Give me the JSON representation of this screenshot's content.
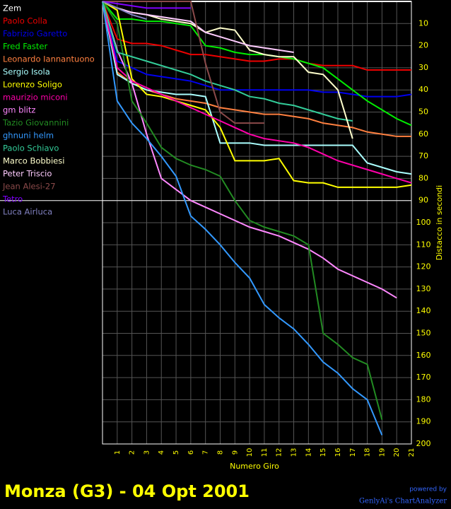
{
  "chart_data": {
    "type": "line",
    "title": "Monza (G3) - 04 Opt 2001",
    "x_label": "Numero Giro",
    "y_label": "Distacco in secondi",
    "credit_top": "powered by",
    "credit_bottom": "GenlyAi's ChartAnalyzer",
    "x": [
      0,
      1,
      2,
      3,
      4,
      5,
      6,
      7,
      8,
      9,
      10,
      11,
      12,
      13,
      14,
      15,
      16,
      17,
      18,
      19,
      20,
      21
    ],
    "xlim": [
      0,
      21
    ],
    "xticks": [
      1,
      2,
      3,
      4,
      5,
      6,
      7,
      8,
      9,
      10,
      11,
      12,
      13,
      14,
      15,
      16,
      17,
      18,
      19,
      20,
      21
    ],
    "ylim": [
      0,
      200
    ],
    "y_inverted": true,
    "yticks": [
      10,
      20,
      30,
      40,
      50,
      60,
      70,
      80,
      90,
      100,
      110,
      120,
      130,
      140,
      150,
      160,
      170,
      180,
      190,
      200
    ],
    "reference_line": 90,
    "grid": true,
    "legend": "top-left",
    "series": [
      {
        "name": "Zem",
        "color": "#ffffff",
        "values": [
          0,
          0,
          0,
          0,
          0,
          0,
          0,
          0,
          0,
          0,
          0,
          0,
          0,
          0,
          0,
          0,
          0,
          0,
          0,
          0,
          0,
          0
        ]
      },
      {
        "name": "Paolo Colla",
        "color": "#ee0000",
        "values": [
          0,
          17,
          19,
          19,
          20,
          22,
          24,
          24,
          25,
          26,
          27,
          27,
          26,
          26,
          28,
          29,
          29,
          29,
          31,
          31,
          31,
          31
        ]
      },
      {
        "name": "Fabrizio Garetto",
        "color": "#0000ee",
        "values": [
          0,
          27,
          30,
          33,
          34,
          35,
          36,
          38,
          40,
          40,
          40,
          40,
          40,
          40,
          40,
          41,
          41,
          42,
          43,
          43,
          43,
          42
        ]
      },
      {
        "name": "Fred Faster",
        "color": "#00ee00",
        "values": [
          0,
          8,
          8,
          9,
          9,
          10,
          11,
          20,
          21,
          23,
          24,
          24,
          25,
          26,
          28,
          30,
          35,
          40,
          45,
          49,
          53,
          56
        ]
      },
      {
        "name": "Leonardo Iannantuono",
        "color": "#ff8040",
        "values": [
          0,
          32,
          37,
          40,
          42,
          44,
          45,
          46,
          48,
          49,
          50,
          51,
          51,
          52,
          53,
          55,
          56,
          57,
          59,
          60,
          61,
          61
        ]
      },
      {
        "name": "Sergio Isola",
        "color": "#aaffff",
        "values": [
          0,
          33,
          37,
          40,
          41,
          42,
          42,
          43,
          64,
          64,
          64,
          65,
          65,
          65,
          65,
          65,
          65,
          65,
          73,
          75,
          77,
          78
        ]
      },
      {
        "name": "Lorenzo Soligo",
        "color": "#ffff00",
        "values": [
          0,
          4,
          35,
          42,
          43,
          45,
          47,
          49,
          57,
          72,
          72,
          72,
          71,
          81,
          82,
          82,
          84,
          84,
          84,
          84,
          84,
          83
        ]
      },
      {
        "name": "maurizio miconi",
        "color": "#ff00aa",
        "values": [
          0,
          30,
          36,
          39,
          42,
          45,
          48,
          51,
          54,
          57,
          60,
          62,
          63,
          64,
          66,
          69,
          72,
          74,
          76,
          78,
          80,
          82
        ]
      },
      {
        "name": "gm blitz",
        "color": "#ff88ff",
        "values": [
          0,
          22,
          37,
          60,
          80,
          85,
          90,
          93,
          96,
          99,
          102,
          104,
          106,
          109,
          112,
          116,
          121,
          124,
          127,
          130,
          134,
          null
        ]
      },
      {
        "name": "Tazio Giovannini",
        "color": "#228b22",
        "values": [
          0,
          10,
          45,
          55,
          66,
          71,
          74,
          76,
          79,
          90,
          99,
          102,
          104,
          106,
          110,
          150,
          155,
          161,
          164,
          189,
          null,
          null
        ]
      },
      {
        "name": "ghnuni helm",
        "color": "#3399ff",
        "values": [
          0,
          45,
          55,
          62,
          70,
          79,
          97,
          103,
          110,
          118,
          125,
          137,
          143,
          148,
          155,
          163,
          168,
          175,
          180,
          196,
          null,
          null
        ]
      },
      {
        "name": "Paolo Schiavo",
        "color": "#33cc99",
        "values": [
          0,
          23,
          25,
          27,
          29,
          31,
          33,
          36,
          38,
          40,
          43,
          44,
          46,
          47,
          49,
          51,
          53,
          54,
          null,
          null,
          null,
          null
        ]
      },
      {
        "name": "Marco Bobbiesi",
        "color": "#ffffcc",
        "values": [
          0,
          3,
          5,
          6,
          8,
          9,
          10,
          14,
          12,
          13,
          22,
          24,
          25,
          25,
          32,
          33,
          40,
          62,
          null,
          null,
          null,
          null
        ]
      },
      {
        "name": "Peter Triscio",
        "color": "#ffccff",
        "values": [
          0,
          3,
          5,
          6,
          7,
          8,
          9,
          14,
          16,
          18,
          20,
          21,
          22,
          23,
          null,
          null,
          null,
          null,
          null,
          null,
          null,
          null
        ]
      },
      {
        "name": "Jean Alesi-27",
        "color": "#8b4a4a",
        "values": [
          0,
          0,
          0,
          0,
          0,
          0,
          0,
          28,
          50,
          55,
          55,
          55,
          null,
          null,
          null,
          null,
          null,
          null,
          null,
          null,
          null,
          null
        ]
      },
      {
        "name": "Tetro",
        "color": "#8000ff",
        "values": [
          0,
          1,
          2,
          3,
          3,
          3,
          3,
          null,
          null,
          null,
          null,
          null,
          null,
          null,
          null,
          null,
          null,
          null,
          null,
          null,
          null,
          null
        ]
      },
      {
        "name": "Luca Airluca",
        "color": "#8080c0",
        "values": [
          0,
          3,
          6,
          8,
          null,
          null,
          null,
          null,
          null,
          null,
          null,
          null,
          null,
          null,
          null,
          null,
          null,
          null,
          null,
          null,
          null,
          null
        ]
      }
    ]
  }
}
